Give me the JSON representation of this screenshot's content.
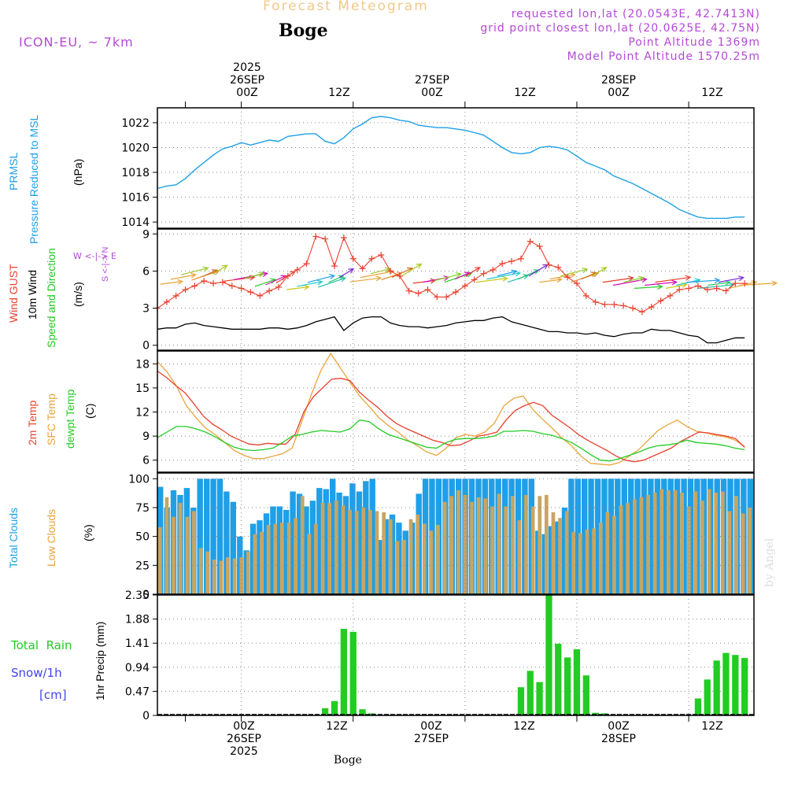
{
  "header": {
    "title": "Forecast Meteogram",
    "station": "Boge",
    "model": "ICON-EU, ~ 7km",
    "requested": "requested lon,lat (20.0543E, 42.7413N)",
    "grid_point": "grid point closest lon,lat (20.0625E, 42.75N)",
    "point_altitude": "Point Altitude 1369m",
    "model_altitude": "Model Point Altitude 1570.25m",
    "watermark": "by Angel",
    "footer_station": "Boge"
  },
  "time_axis": {
    "top_labels": [
      {
        "line1": "2025",
        "line2": "26SEP",
        "line3": "00Z"
      },
      {
        "line1": "",
        "line2": "",
        "line3": "12Z"
      },
      {
        "line1": "",
        "line2": "27SEP",
        "line3": "00Z"
      },
      {
        "line1": "",
        "line2": "",
        "line3": "12Z"
      },
      {
        "line1": "",
        "line2": "28SEP",
        "line3": "00Z"
      },
      {
        "line1": "",
        "line2": "",
        "line3": "12Z"
      }
    ],
    "bottom_labels": [
      {
        "line1": "00Z",
        "line2": "26SEP",
        "line3": "2025"
      },
      {
        "line1": "12Z",
        "line2": "",
        "line3": ""
      },
      {
        "line1": "00Z",
        "line2": "27SEP",
        "line3": ""
      },
      {
        "line1": "12Z",
        "line2": "",
        "line3": ""
      },
      {
        "line1": "00Z",
        "line2": "28SEP",
        "line3": ""
      },
      {
        "line1": "12Z",
        "line2": "",
        "line3": ""
      }
    ]
  },
  "labels": {
    "pressure": {
      "l1": "PRMSL",
      "l2": "Pressure Reduced to MSL",
      "unit": "(hPa)"
    },
    "wind": {
      "l1": "Wind GUST",
      "l2": "10m Wind",
      "l3": "Speed and Direction",
      "unit": "(m/s)",
      "compass_we": "W <-|-> E",
      "compass_sn": "S <-|-> N"
    },
    "temp": {
      "l1": "2m Temp",
      "l2": "SFC Temp",
      "l3": "dewpt Temp",
      "unit": "(C)"
    },
    "cloud": {
      "l1": "Total Clouds",
      "l2": "Low Clouds",
      "unit": "(%)"
    },
    "precip": {
      "l1": "Total  Rain",
      "l2": "Snow/1h",
      "l3": "[cm]",
      "axis": "1hr Precip (mm)"
    }
  },
  "colors": {
    "pressure": "#1ea0e6",
    "gust": "#e8412f",
    "wind": "#000000",
    "t2m": "#e8412f",
    "sfc": "#e8a43a",
    "dew": "#22cc22",
    "total_cloud": "#1e9fe8",
    "low_cloud": "#c9a560",
    "rain": "#22cc22",
    "snow": "#4444ee",
    "purple": "#b548d8"
  },
  "chart_data": {
    "type": "meteogram",
    "hours": "0 to 63 h from 2025-09-25 15Z (hourly)",
    "panels": [
      {
        "name": "pressure",
        "type": "line",
        "ylim": [
          1013.5,
          1023.2
        ],
        "ticks": [
          1014,
          1016,
          1018,
          1020,
          1022
        ],
        "series": [
          {
            "name": "PRMSL",
            "values": [
              1016.7,
              1016.9,
              1017.0,
              1017.5,
              1018.2,
              1018.8,
              1019.4,
              1019.9,
              1020.1,
              1020.4,
              1020.2,
              1020.4,
              1020.6,
              1020.5,
              1020.9,
              1021.0,
              1021.1,
              1021.1,
              1020.5,
              1020.3,
              1020.8,
              1021.5,
              1021.9,
              1022.4,
              1022.5,
              1022.4,
              1022.2,
              1022.1,
              1021.8,
              1021.7,
              1021.6,
              1021.6,
              1021.5,
              1021.4,
              1021.2,
              1021.0,
              1020.5,
              1020.0,
              1019.6,
              1019.5,
              1019.6,
              1020.0,
              1020.1,
              1020.0,
              1019.8,
              1019.3,
              1018.8,
              1018.5,
              1018.2,
              1017.7,
              1017.4,
              1017.1,
              1016.7,
              1016.3,
              1015.9,
              1015.5,
              1015.0,
              1014.7,
              1014.4,
              1014.3,
              1014.3,
              1014.3,
              1014.4,
              1014.4
            ]
          }
        ]
      },
      {
        "name": "wind",
        "type": "line+vectors",
        "ylim": [
          -0.4,
          9.4
        ],
        "ticks": [
          0,
          3,
          6,
          9
        ],
        "series": [
          {
            "name": "Wind GUST",
            "values": [
              3.0,
              3.5,
              4.0,
              4.5,
              4.8,
              5.2,
              5.0,
              5.1,
              4.8,
              4.6,
              4.3,
              4.0,
              4.4,
              4.7,
              5.6,
              6.1,
              6.6,
              8.8,
              8.6,
              6.4,
              8.7,
              7.0,
              6.2,
              7.0,
              7.3,
              6.0,
              5.6,
              4.4,
              4.2,
              4.5,
              3.9,
              3.9,
              4.3,
              4.8,
              5.3,
              5.8,
              6.1,
              6.6,
              6.8,
              7.0,
              8.4,
              8.0,
              6.5,
              6.3,
              5.5,
              5.0,
              4.0,
              3.5,
              3.3,
              3.3,
              3.2,
              3.0,
              2.7,
              3.1,
              3.6,
              4.0,
              4.5,
              4.6,
              4.8,
              4.5,
              4.6,
              4.4,
              5.0,
              5.0
            ]
          },
          {
            "name": "10m Wind",
            "values": [
              1.3,
              1.4,
              1.4,
              1.7,
              1.8,
              1.6,
              1.5,
              1.4,
              1.3,
              1.3,
              1.3,
              1.3,
              1.4,
              1.4,
              1.3,
              1.4,
              1.6,
              1.9,
              2.1,
              2.3,
              1.2,
              1.8,
              2.2,
              2.3,
              2.3,
              1.8,
              1.6,
              1.5,
              1.5,
              1.4,
              1.5,
              1.6,
              1.8,
              1.9,
              2.0,
              2.0,
              2.2,
              2.3,
              1.9,
              1.7,
              1.5,
              1.3,
              1.1,
              1.1,
              1.0,
              1.0,
              0.9,
              1.0,
              0.8,
              0.7,
              0.9,
              1.0,
              1.0,
              1.3,
              1.2,
              1.2,
              1.0,
              0.8,
              0.7,
              0.2,
              0.2,
              0.4,
              0.6,
              0.6
            ]
          }
        ]
      },
      {
        "name": "temperature",
        "type": "line",
        "ylim": [
          4.5,
          19.6
        ],
        "ticks": [
          6,
          9,
          12,
          15,
          18
        ],
        "series": [
          {
            "name": "2m Temp",
            "values": [
              17.1,
              16.3,
              15.3,
              14.4,
              13.0,
              11.5,
              10.5,
              9.8,
              9.0,
              8.5,
              8.0,
              7.9,
              8.1,
              8.0,
              8.0,
              9.2,
              12.1,
              13.9,
              15.0,
              16.1,
              16.2,
              15.9,
              14.5,
              13.5,
              12.6,
              11.5,
              10.6,
              10.0,
              9.5,
              9.0,
              8.5,
              8.2,
              7.8,
              7.9,
              8.4,
              9.0,
              9.2,
              9.5,
              11.0,
              12.2,
              12.8,
              13.2,
              12.8,
              11.6,
              10.8,
              10.0,
              9.1,
              8.4,
              7.8,
              7.2,
              6.5,
              6.0,
              5.8,
              6.0,
              6.5,
              7.0,
              7.5,
              8.3,
              8.9,
              9.5,
              9.4,
              9.2,
              9.0,
              8.7,
              7.6
            ]
          },
          {
            "name": "SFC Temp",
            "values": [
              18.3,
              17.0,
              15.2,
              12.8,
              11.3,
              10.0,
              9.2,
              8.2,
              7.2,
              6.6,
              6.2,
              6.2,
              6.5,
              6.8,
              7.5,
              10.8,
              14.2,
              17.2,
              19.3,
              17.5,
              15.7,
              14.0,
              12.7,
              11.3,
              10.3,
              9.5,
              8.5,
              7.8,
              7.0,
              6.6,
              7.5,
              8.8,
              9.2,
              9.0,
              9.5,
              10.6,
              12.8,
              13.7,
              14.0,
              12.3,
              11.1,
              10.0,
              8.8,
              7.8,
              6.5,
              5.6,
              5.5,
              5.4,
              5.7,
              6.5,
              7.3,
              8.5,
              9.7,
              10.4,
              11.0,
              10.2,
              9.6,
              9.4,
              9.1,
              8.9,
              8.5,
              7.7
            ]
          },
          {
            "name": "dewpt Temp",
            "values": [
              8.8,
              9.5,
              10.2,
              10.2,
              9.9,
              9.5,
              8.9,
              8.2,
              7.6,
              7.3,
              7.2,
              7.3,
              7.5,
              8.2,
              9.0,
              9.2,
              9.5,
              9.7,
              9.6,
              9.5,
              9.9,
              11.0,
              10.8,
              9.9,
              9.2,
              8.8,
              8.4,
              8.0,
              7.6,
              7.5,
              8.2,
              8.6,
              8.7,
              8.7,
              8.8,
              9.0,
              9.6,
              9.6,
              9.7,
              9.6,
              9.3,
              9.1,
              8.7,
              8.2,
              7.5,
              6.7,
              6.0,
              5.9,
              6.2,
              6.6,
              7.0,
              7.5,
              7.8,
              7.9,
              8.1,
              8.5,
              8.2,
              8.1,
              8.0,
              7.8,
              7.5,
              7.3
            ]
          }
        ]
      },
      {
        "name": "clouds",
        "type": "bar",
        "ylim": [
          0,
          105
        ],
        "ticks": [
          0,
          25,
          50,
          75,
          100
        ],
        "series": [
          {
            "name": "Total Clouds",
            "values": [
              93,
              75,
              90,
              86,
              92,
              75,
              100,
              100,
              100,
              100,
              89,
              80,
              50,
              38,
              61,
              64,
              70,
              76,
              76,
              73,
              89,
              87,
              76,
              81,
              92,
              91,
              100,
              88,
              85,
              96,
              89,
              98,
              100,
              47,
              65,
              69,
              62,
              55,
              62,
              87,
              100,
              100,
              100,
              100,
              100,
              100,
              100,
              100,
              100,
              100,
              100,
              100,
              100,
              100,
              100,
              100,
              100,
              55,
              52,
              59,
              63,
              75,
              100,
              100,
              100,
              100,
              100,
              100,
              100,
              100,
              100,
              100,
              100,
              100,
              100,
              100,
              100,
              100,
              100,
              100,
              100,
              100,
              100,
              100,
              100,
              100,
              100,
              100,
              100,
              100
            ]
          },
          {
            "name": "Low Clouds",
            "values": [
              58,
              84,
              67,
              79,
              67,
              72,
              40,
              37,
              30,
              29,
              32,
              31,
              32,
              37,
              52,
              54,
              60,
              61,
              62,
              62,
              66,
              85,
              52,
              61,
              79,
              79,
              81,
              77,
              73,
              72,
              75,
              73,
              72,
              71,
              65,
              46,
              47,
              65,
              69,
              61,
              55,
              60,
              80,
              85,
              90,
              86,
              80,
              84,
              83,
              76,
              87,
              76,
              85,
              64,
              86,
              76,
              85,
              86,
              71,
              66,
              72,
              54,
              53,
              56,
              57,
              62,
              71,
              68,
              77,
              79,
              82,
              84,
              86,
              88,
              91,
              90,
              90,
              88,
              76,
              89,
              81,
              91,
              88,
              89,
              72,
              85,
              70,
              75
            ]
          }
        ]
      },
      {
        "name": "precip",
        "type": "bar",
        "ylim": [
          0,
          2.35
        ],
        "ticks": [
          "0",
          "0.47",
          "0.94",
          "1.41",
          "1.88",
          "2.35"
        ],
        "series": [
          {
            "name": "Total Rain",
            "hours": [
              18,
              19,
              20,
              21,
              22,
              23,
              39,
              40,
              41,
              42,
              43,
              44,
              45,
              46,
              47,
              48,
              58,
              59,
              60,
              61,
              62,
              63
            ],
            "values": [
              0.14,
              0.28,
              1.69,
              1.63,
              0.12,
              0.04,
              0.55,
              0.87,
              0.65,
              2.35,
              1.4,
              1.13,
              1.29,
              0.78,
              0.05,
              0.04,
              0.33,
              0.7,
              1.07,
              1.22,
              1.18,
              1.12
            ]
          },
          {
            "name": "Snow",
            "values": []
          }
        ]
      }
    ]
  }
}
